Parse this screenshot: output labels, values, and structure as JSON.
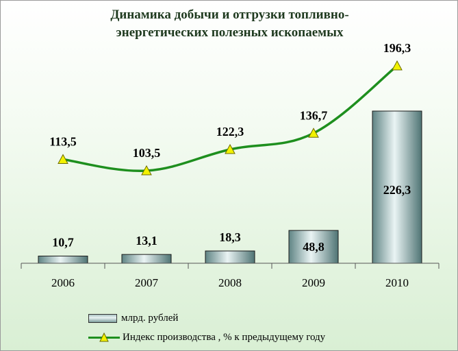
{
  "chart_data": {
    "type": "bar+line",
    "title_lines": [
      "Динамика добычи и отгрузки топливно-",
      "энергетических полезных ископаемых"
    ],
    "categories": [
      "2006",
      "2007",
      "2008",
      "2009",
      "2010"
    ],
    "series": [
      {
        "name": "млрд. рублей",
        "type": "bar",
        "values": [
          10.7,
          13.1,
          18.3,
          48.8,
          226.3
        ],
        "labels": [
          "10,7",
          "13,1",
          "18,3",
          "48,8",
          "226,3"
        ],
        "color": "#9db8b8"
      },
      {
        "name": "Индекс производства , % к предыдущему году",
        "type": "line",
        "values": [
          113.5,
          103.5,
          122.3,
          136.7,
          196.3
        ],
        "labels": [
          "113,5",
          "103,5",
          "122,3",
          "136,7",
          "196,3"
        ],
        "color": "#1e8f1e",
        "marker_color": "#f2f200"
      }
    ],
    "legend_position": "bottom",
    "grid": false
  }
}
